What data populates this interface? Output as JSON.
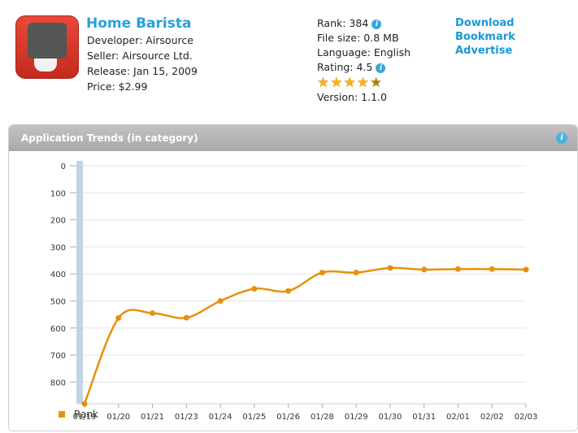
{
  "app": {
    "title": "Home Barista",
    "developer": "Developer: Airsource",
    "seller": "Seller: Airsource Ltd.",
    "release": "Release: Jan 15, 2009",
    "price": "Price: $2.99",
    "icon": "espresso-machine-icon"
  },
  "stats": {
    "rank": "Rank: 384",
    "file_size": "File size: 0.8 MB",
    "language": "Language: English",
    "rating": "Rating: 4.5",
    "rating_value": 4.5,
    "version": "Version: 1.1.0"
  },
  "links": {
    "download": "Download",
    "bookmark": "Bookmark",
    "advertise": "Advertise"
  },
  "panel": {
    "title": "Application Trends (in category)"
  },
  "colors": {
    "series": "#e8900c",
    "link": "#1a98d6"
  },
  "chart_data": {
    "type": "line",
    "title": "",
    "xlabel": "",
    "ylabel": "",
    "y_reversed": true,
    "ylim": [
      0,
      880
    ],
    "y_ticks": [
      0,
      100,
      200,
      300,
      400,
      500,
      600,
      700,
      800
    ],
    "categories": [
      "01/19",
      "01/20",
      "01/21",
      "01/23",
      "01/24",
      "01/25",
      "01/26",
      "01/28",
      "01/29",
      "01/30",
      "01/31",
      "02/01",
      "02/02",
      "02/03"
    ],
    "series": [
      {
        "name": "Rank",
        "values": [
          880,
          563,
          545,
          562,
          500,
          455,
          463,
          395,
          395,
          378,
          384,
          382,
          382,
          384
        ]
      }
    ],
    "legend": "bottom-left",
    "grid": true
  }
}
